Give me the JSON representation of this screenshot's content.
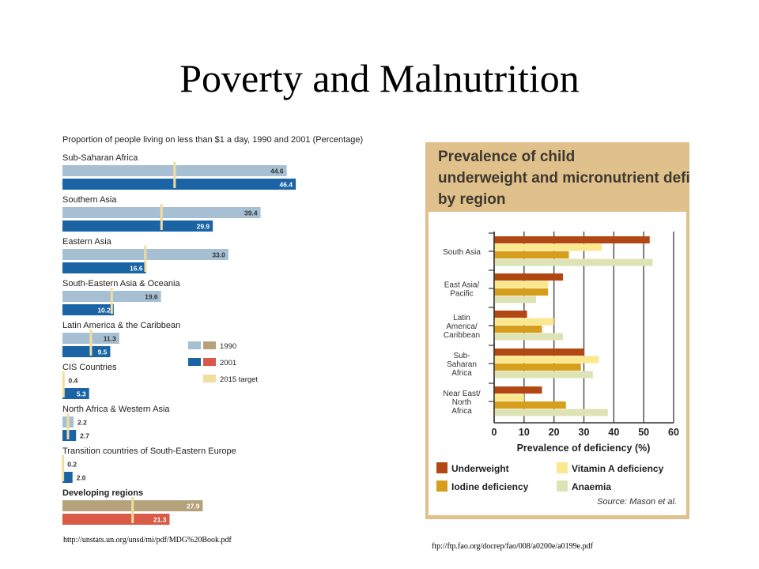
{
  "slide": {
    "title": "Poverty and Malnutrition",
    "source_left": "http://unstats.un.org/unsd/mi/pdf/MDG%20Book.pdf",
    "source_right": "ftp://ftp.fao.org/docrep/fao/008/a0200e/a0199e.pdf"
  },
  "chart_data": [
    {
      "type": "bar",
      "title": "Proportion of people living on less than $1 a day, 1990 and 2001 (Percentage)",
      "categories": [
        "Sub-Saharan Africa",
        "Southern Asia",
        "Eastern Asia",
        "South-Eastern Asia & Oceania",
        "Latin America & the Caribbean",
        "CIS Countries",
        "North Africa & Western Asia",
        "Transition countries of South-Eastern Europe",
        "Developing regions"
      ],
      "series": [
        {
          "name": "1990",
          "values": [
            44.6,
            39.4,
            33.0,
            19.6,
            11.3,
            0.4,
            2.2,
            0.2,
            27.9
          ],
          "labels": [
            "44.6",
            "39.4",
            "33.0",
            "19.6",
            "11.3",
            "0.4",
            "2.2",
            "0.2",
            "27.9"
          ]
        },
        {
          "name": "2001",
          "values": [
            46.4,
            29.9,
            16.6,
            10.2,
            9.5,
            5.3,
            2.7,
            2.0,
            21.3
          ],
          "labels": [
            "46.4",
            "29.9",
            "16.6",
            "10.2",
            "9.5",
            "5.3",
            "2.7",
            "2.0",
            "21.3"
          ]
        },
        {
          "name": "2015 target",
          "values": [
            22.3,
            19.7,
            16.5,
            9.8,
            5.65,
            0.2,
            1.1,
            0.1,
            13.95
          ]
        }
      ],
      "colors": {
        "light": "#a7bfd3",
        "dark": "#1a63a5",
        "light_dev": "#b5a27a",
        "dark_dev": "#d85a47",
        "target": "#f1de9e"
      }
    },
    {
      "type": "bar",
      "orientation": "horizontal",
      "title": "Prevalence of child underweight and micronutrient deficiencies by region",
      "xlabel": "Prevalence of deficiency (%)",
      "xlim": [
        0,
        60
      ],
      "ticks": [
        "0",
        "10",
        "20",
        "30",
        "40",
        "50",
        "60"
      ],
      "categories": [
        [
          "South Asia"
        ],
        [
          "East Asia/",
          "Pacific"
        ],
        [
          "Latin",
          "America/",
          "Caribbean"
        ],
        [
          "Sub-",
          "Saharan",
          "Africa"
        ],
        [
          "Near East/",
          "North",
          "Africa"
        ]
      ],
      "series": [
        {
          "name": "Underweight",
          "color": "#b34714",
          "values": [
            52,
            23,
            11,
            30,
            16
          ]
        },
        {
          "name": "Vitamin A deficiency",
          "color": "#fbe78d",
          "values": [
            36,
            18,
            20,
            35,
            10
          ]
        },
        {
          "name": "Iodine deficiency",
          "color": "#d69e1c",
          "values": [
            25,
            18,
            16,
            29,
            24
          ]
        },
        {
          "name": "Anaemia",
          "color": "#dee3b5",
          "values": [
            53,
            14,
            23,
            33,
            38
          ]
        }
      ],
      "source": "Source: Mason et al.",
      "colors": {
        "frame": "#e0c08b",
        "title": "#3d3930"
      }
    }
  ]
}
